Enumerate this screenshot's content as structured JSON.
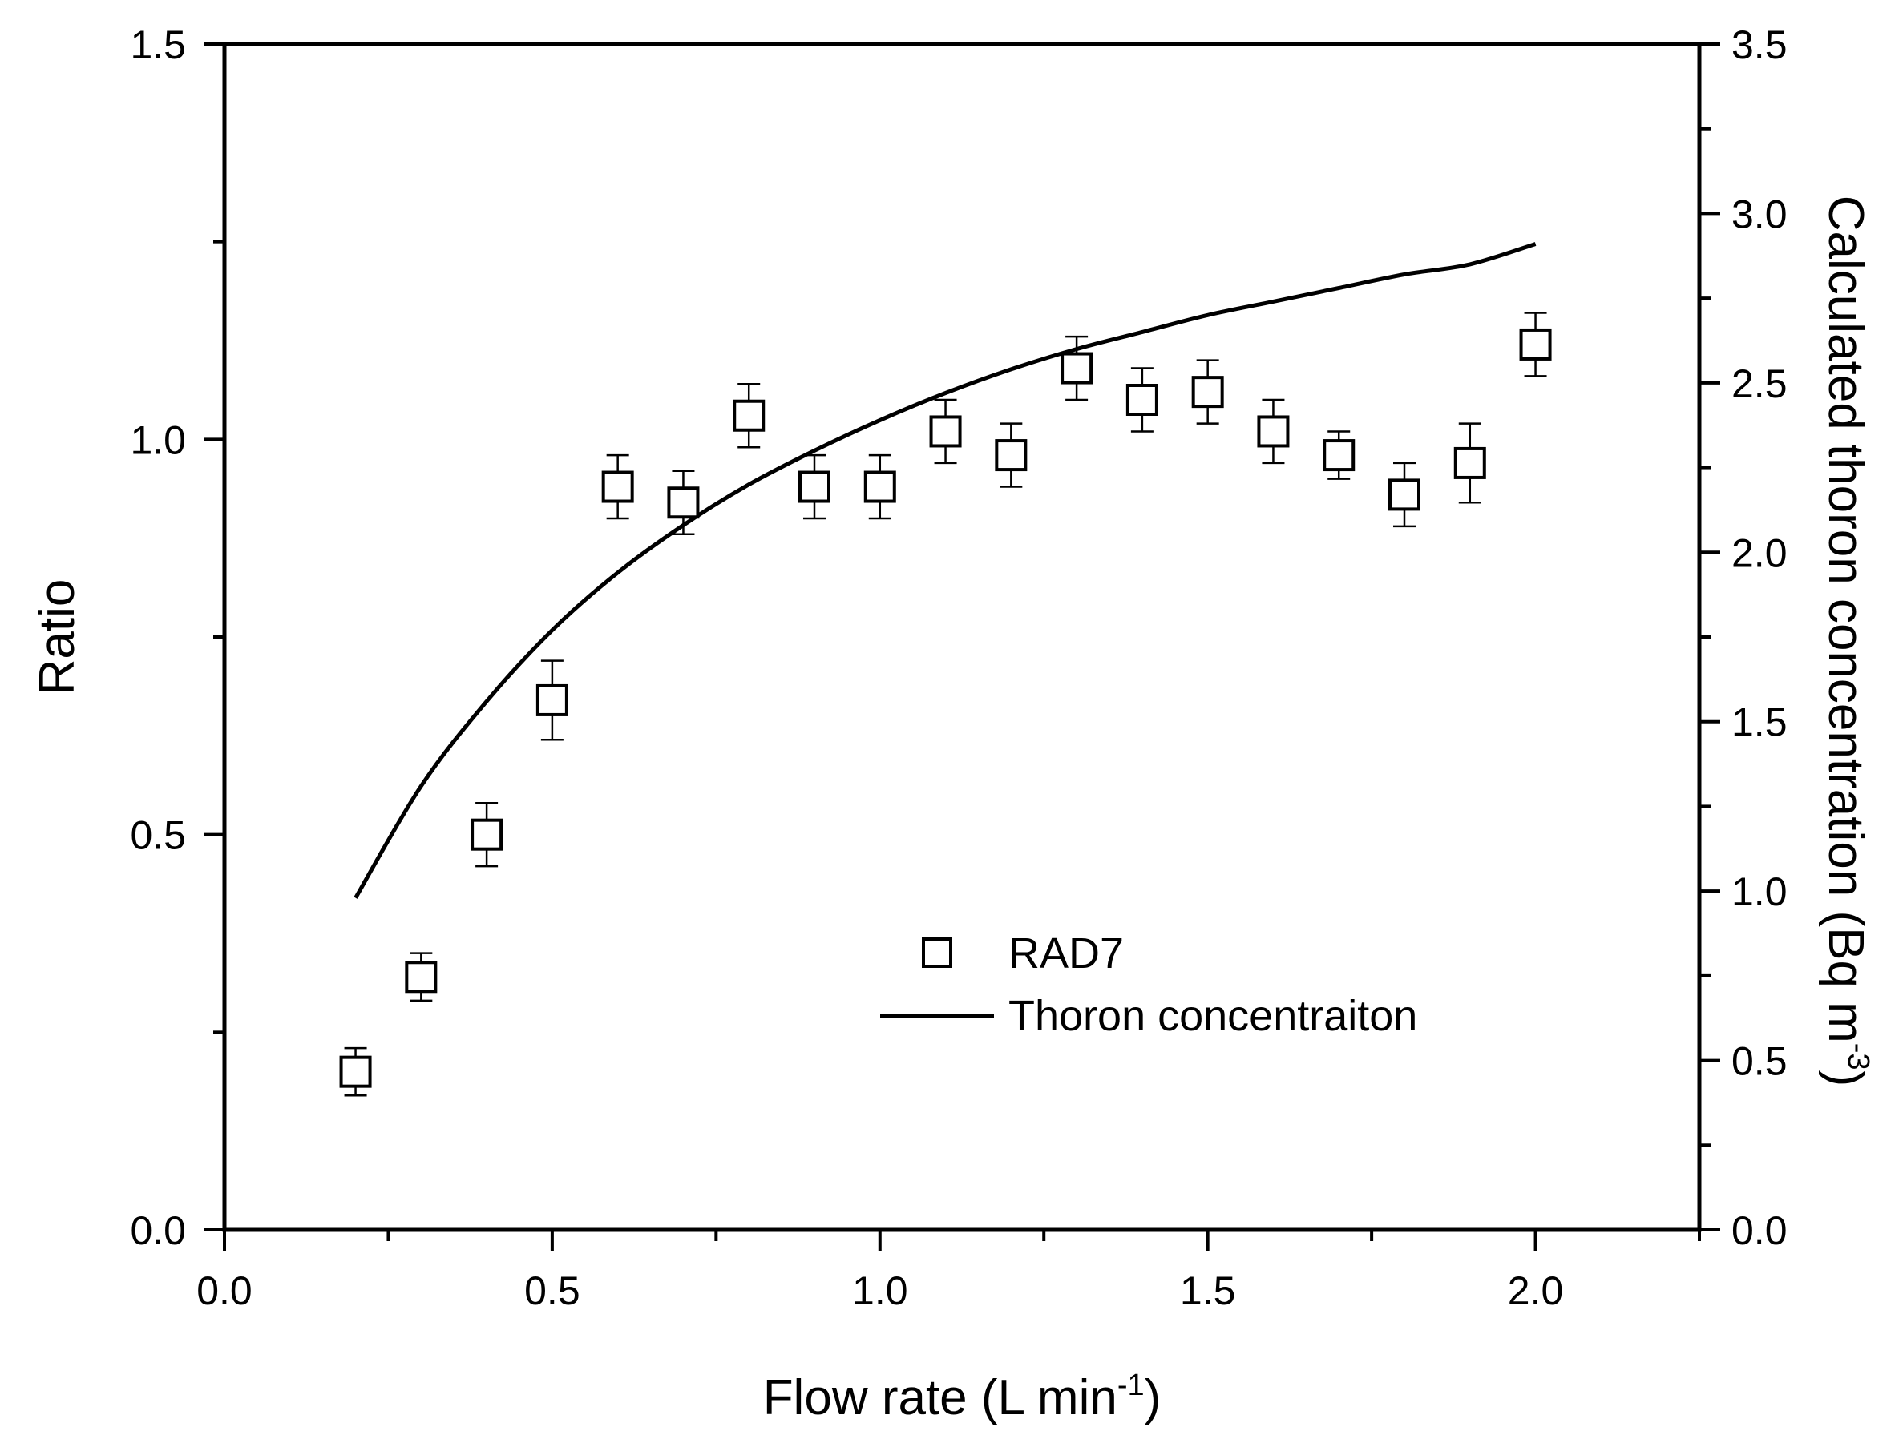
{
  "chart_data": {
    "type": "scatter",
    "xlabel": "Flow rate (L min",
    "xlabel_sup": "-1",
    "xlabel_close": ")",
    "ylabel_left": "Ratio",
    "ylabel_right": "Calculated thoron concentration (Bq m",
    "ylabel_right_sup": "-3",
    "ylabel_right_close": ")",
    "xlim": [
      0,
      2.25
    ],
    "ylim_left": [
      0,
      1.5
    ],
    "ylim_right": [
      0,
      3.5
    ],
    "x_ticks": [
      "0.0",
      "0.5",
      "1.0",
      "1.5",
      "2.0"
    ],
    "y_left_ticks": [
      "0.0",
      "0.5",
      "1.0",
      "1.5"
    ],
    "y_right_ticks": [
      "0.0",
      "0.5",
      "1.0",
      "1.5",
      "2.0",
      "2.5",
      "3.0",
      "3.5"
    ],
    "legend": [
      {
        "label": "RAD7",
        "style": "open-square"
      },
      {
        "label": "Thoron concentraiton",
        "style": "line"
      }
    ],
    "series": [
      {
        "name": "RAD7",
        "axis": "left",
        "x": [
          0.2,
          0.3,
          0.4,
          0.5,
          0.6,
          0.7,
          0.8,
          0.9,
          1.0,
          1.1,
          1.2,
          1.3,
          1.4,
          1.5,
          1.6,
          1.7,
          1.8,
          1.9,
          2.0
        ],
        "y": [
          0.2,
          0.32,
          0.5,
          0.67,
          0.94,
          0.92,
          1.03,
          0.94,
          0.94,
          1.01,
          0.98,
          1.09,
          1.05,
          1.06,
          1.01,
          0.98,
          0.93,
          0.97,
          1.12
        ],
        "error": [
          0.03,
          0.03,
          0.04,
          0.05,
          0.04,
          0.04,
          0.04,
          0.04,
          0.04,
          0.04,
          0.04,
          0.04,
          0.04,
          0.04,
          0.04,
          0.03,
          0.04,
          0.05,
          0.04
        ]
      },
      {
        "name": "Thoron concentraiton",
        "axis": "right",
        "x": [
          0.2,
          0.3,
          0.4,
          0.5,
          0.6,
          0.7,
          0.8,
          0.9,
          1.0,
          1.1,
          1.2,
          1.3,
          1.4,
          1.5,
          1.6,
          1.7,
          1.8,
          1.9,
          2.0
        ],
        "y": [
          0.98,
          1.31,
          1.56,
          1.77,
          1.94,
          2.08,
          2.2,
          2.3,
          2.39,
          2.47,
          2.54,
          2.6,
          2.65,
          2.7,
          2.74,
          2.78,
          2.82,
          2.85,
          2.91
        ]
      }
    ]
  }
}
